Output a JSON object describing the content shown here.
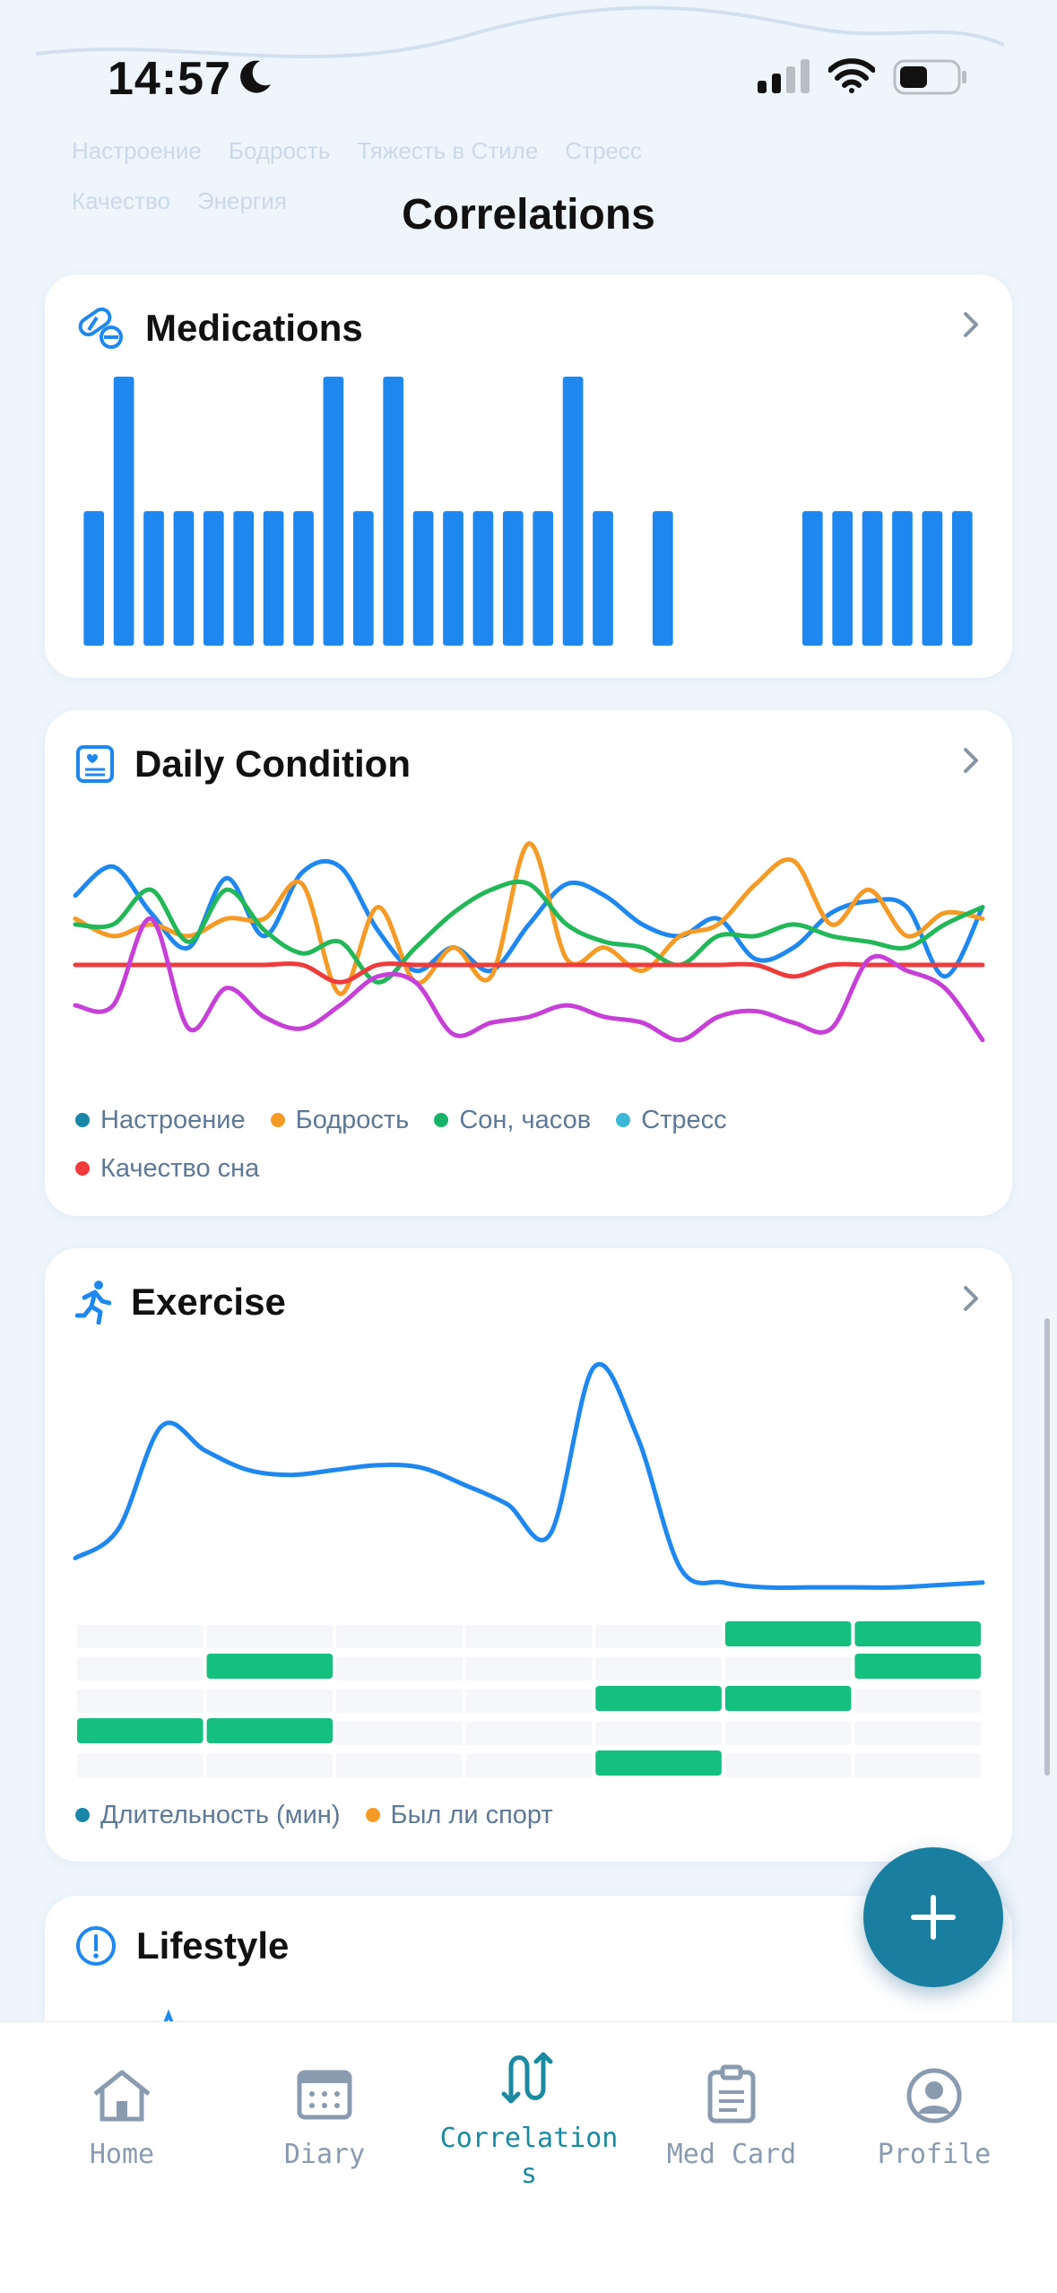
{
  "status_bar": {
    "time": "14:57"
  },
  "header": {
    "title": "Correlations"
  },
  "background_legend": [
    "Настроение",
    "Бодрость",
    "Тяжесть в Стиле",
    "Стресс",
    "Качество",
    "Энергия"
  ],
  "cards": {
    "medications": {
      "title": "Medications",
      "icon": "pills-icon",
      "chart_data": {
        "type": "bar",
        "values": [
          2,
          4,
          2,
          2,
          2,
          2,
          2,
          2,
          4,
          2,
          4,
          2,
          2,
          2,
          2,
          2,
          4,
          2,
          0,
          2,
          0,
          0,
          0,
          0,
          2,
          2,
          2,
          2,
          2,
          2
        ],
        "ylim": [
          0,
          4
        ]
      }
    },
    "daily_condition": {
      "title": "Daily Condition",
      "icon": "clipboard-heart-icon",
      "legend": [
        {
          "label": "Настроение",
          "color": "#1a86a8"
        },
        {
          "label": "Бодрость",
          "color": "#f59a24"
        },
        {
          "label": "Сон, часов",
          "color": "#16b36b"
        },
        {
          "label": "Стресс",
          "color": "#3bb8d8"
        },
        {
          "label": "Качество сна",
          "color": "#ef3b3b"
        }
      ],
      "chart_data": {
        "type": "line",
        "series": [
          {
            "color": "#1e88f0",
            "values": [
              6.5,
              7,
              6.2,
              5.6,
              6.8,
              5.8,
              6.9,
              7,
              5.9,
              5.2,
              5.6,
              5.2,
              6.0,
              6.7,
              6.5,
              6.0,
              5.8,
              6.1,
              5.4,
              5.6,
              6.2,
              6.4,
              6.3,
              5.1,
              6.3
            ]
          },
          {
            "color": "#f59a24",
            "values": [
              6.1,
              5.8,
              6.0,
              5.8,
              6.1,
              6.1,
              6.7,
              4.8,
              6.3,
              5.0,
              5.6,
              5.1,
              7.4,
              5.4,
              5.6,
              5.2,
              5.8,
              6.0,
              6.7,
              7.1,
              6.0,
              6.6,
              5.8,
              6.2,
              6.1
            ]
          },
          {
            "color": "#22b859",
            "values": [
              6.0,
              6.0,
              6.6,
              5.7,
              6.6,
              5.9,
              5.5,
              5.7,
              5.0,
              5.6,
              6.2,
              6.6,
              6.7,
              6.0,
              5.7,
              5.6,
              5.3,
              5.8,
              5.8,
              6.0,
              5.8,
              5.7,
              5.6,
              6.0,
              6.3
            ]
          },
          {
            "color": "#ef3b3b",
            "values": [
              5.3,
              5.3,
              5.3,
              5.3,
              5.3,
              5.3,
              5.3,
              5.0,
              5.3,
              5.3,
              5.3,
              5.3,
              5.3,
              5.3,
              5.3,
              5.3,
              5.3,
              5.3,
              5.3,
              5.1,
              5.3,
              5.3,
              5.3,
              5.3,
              5.3
            ]
          },
          {
            "color": "#c640d8",
            "values": [
              4.6,
              4.6,
              6.1,
              4.2,
              4.9,
              4.4,
              4.2,
              4.6,
              5.1,
              5.0,
              4.1,
              4.3,
              4.4,
              4.6,
              4.4,
              4.3,
              4.0,
              4.4,
              4.5,
              4.3,
              4.2,
              5.4,
              5.2,
              4.9,
              4.0
            ]
          }
        ]
      }
    },
    "exercise": {
      "title": "Exercise",
      "icon": "running-icon",
      "legend": [
        {
          "label": "Длительность (мин)",
          "color": "#1a86a8"
        },
        {
          "label": "Был ли спорт",
          "color": "#f59a24"
        }
      ],
      "chart_data": {
        "type": "line",
        "series": [
          {
            "color": "#1e88f0",
            "values": [
              20,
              32,
              74,
              64,
              56,
              54,
              56,
              58,
              57,
              50,
              42,
              30,
              98,
              70,
              16,
              10,
              8,
              8,
              8,
              8,
              9,
              10
            ]
          }
        ]
      },
      "activity_grid": {
        "rows": 5,
        "cols": 7,
        "filled": [
          [
            0,
            5
          ],
          [
            0,
            6
          ],
          [
            1,
            1
          ],
          [
            1,
            6
          ],
          [
            2,
            4
          ],
          [
            2,
            5
          ],
          [
            3,
            0
          ],
          [
            3,
            1
          ],
          [
            4,
            4
          ]
        ]
      }
    },
    "lifestyle": {
      "title": "Lifestyle",
      "icon": "alert-circle-icon"
    }
  },
  "fab": {
    "icon": "plus-icon"
  },
  "tabbar": {
    "tabs": [
      {
        "label": "Home",
        "icon": "house-icon"
      },
      {
        "label": "Diary",
        "icon": "calendar-icon"
      },
      {
        "label": "Correlation\ns",
        "icon": "correlations-icon",
        "active": true
      },
      {
        "label": "Med Card",
        "icon": "clipboard-icon"
      },
      {
        "label": "Profile",
        "icon": "profile-icon"
      }
    ]
  }
}
